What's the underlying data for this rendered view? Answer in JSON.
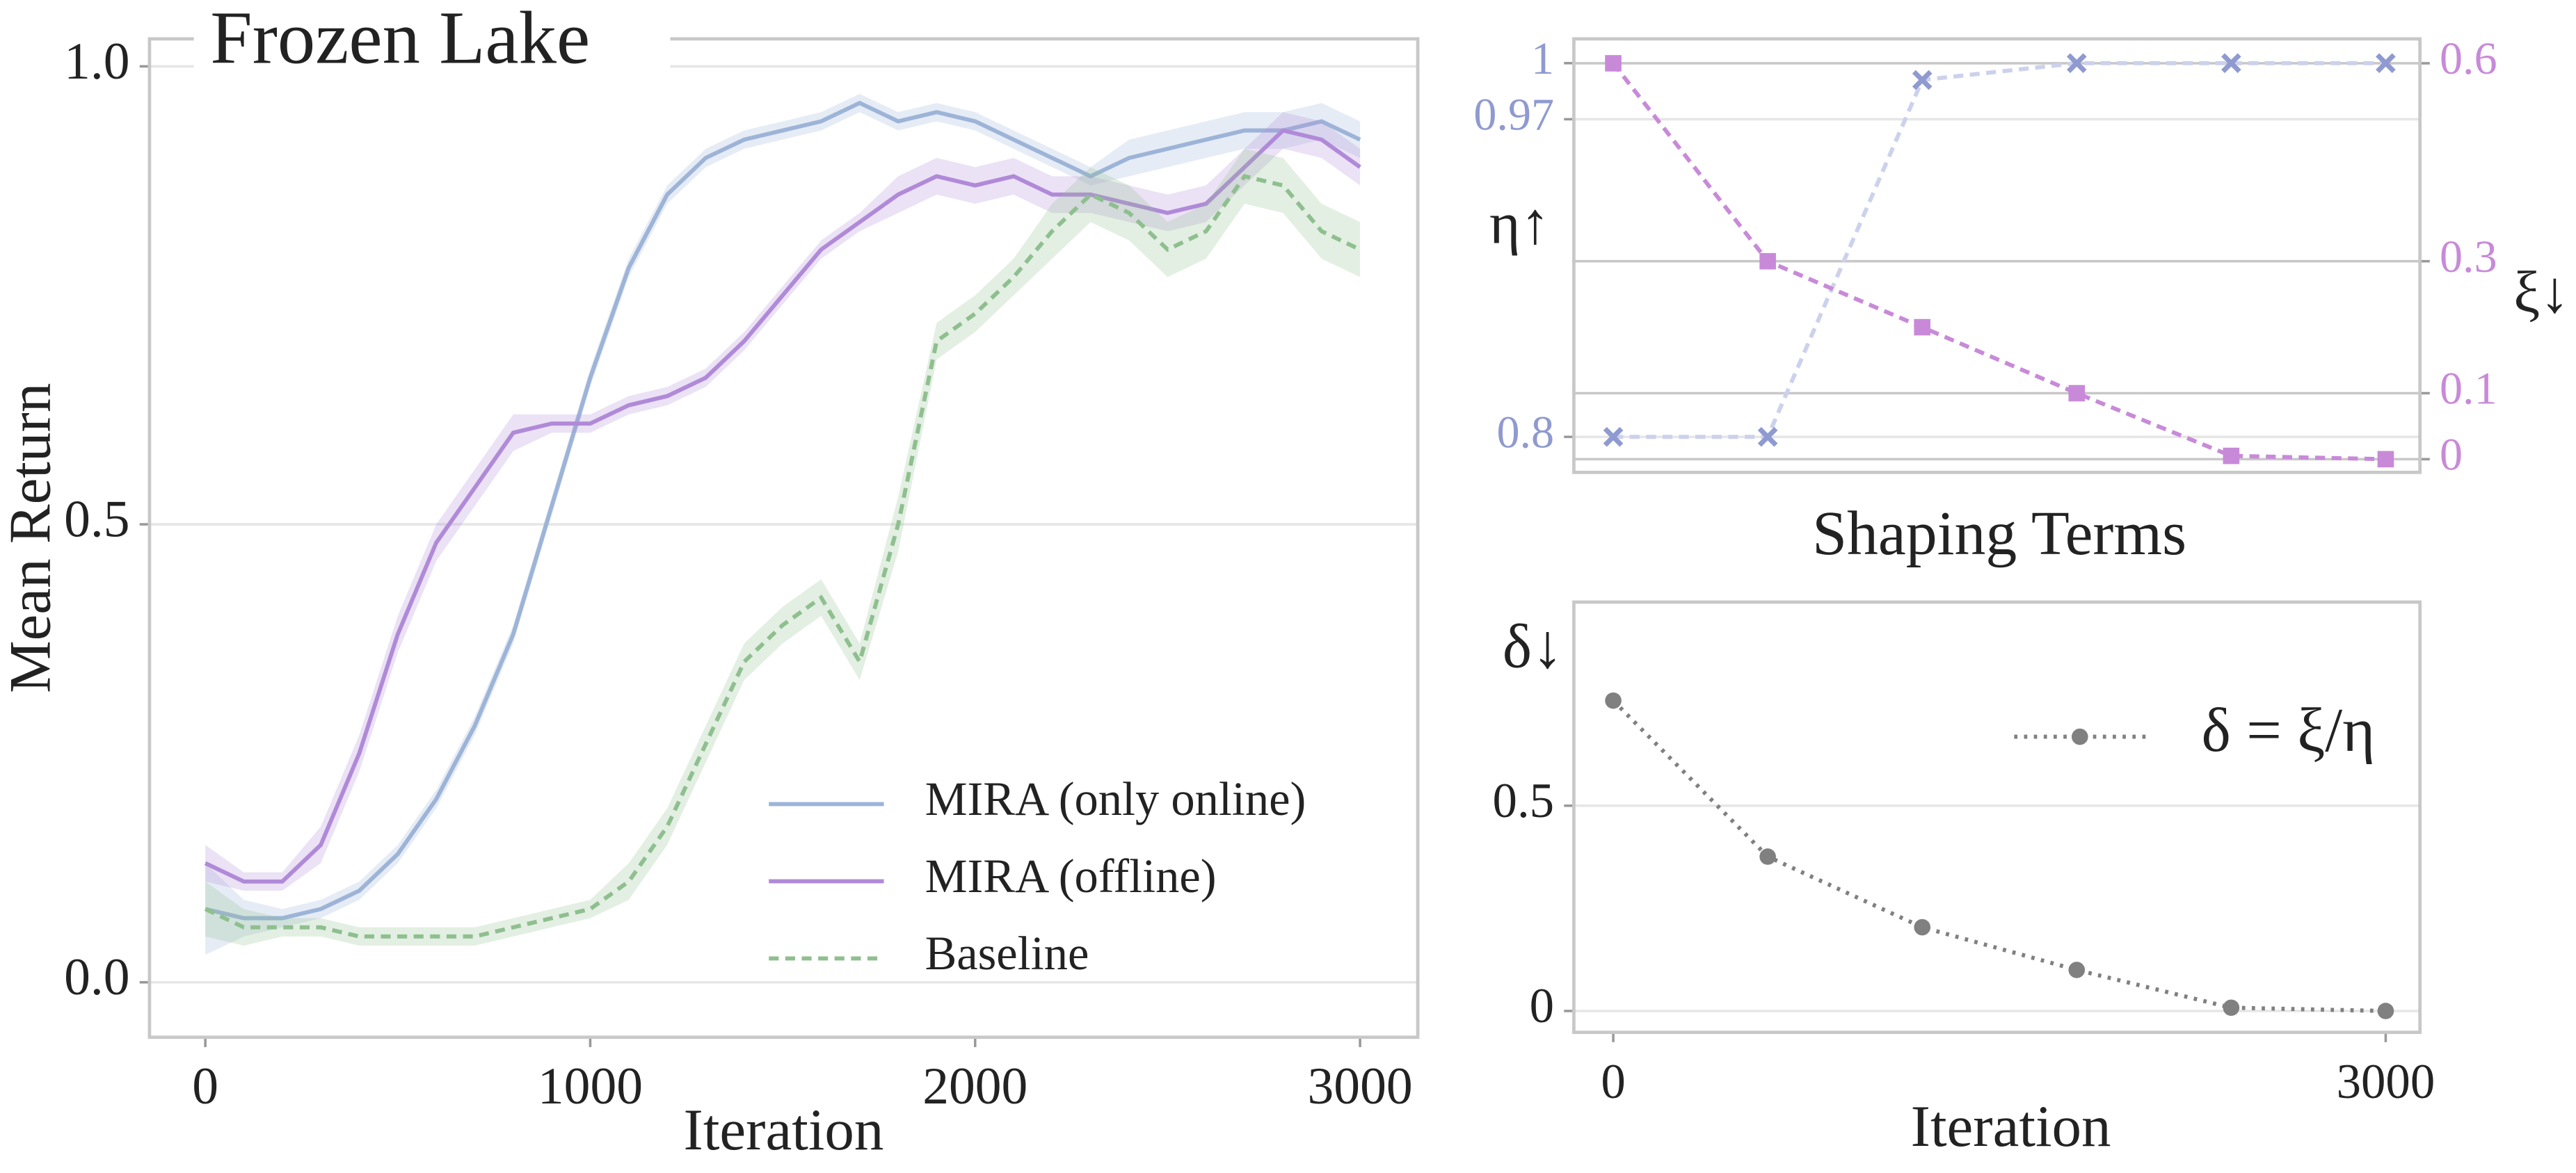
{
  "chart_data": [
    {
      "type": "line",
      "title": "Frozen Lake",
      "xlabel": "Iteration",
      "ylabel": "Mean Return",
      "x": [
        0,
        100,
        200,
        300,
        400,
        500,
        600,
        700,
        800,
        900,
        1000,
        1100,
        1200,
        1300,
        1400,
        1500,
        1600,
        1700,
        1800,
        1900,
        2000,
        2100,
        2200,
        2300,
        2400,
        2500,
        2600,
        2700,
        2800,
        2900,
        3000
      ],
      "xlim": [
        -145,
        3150
      ],
      "xticks": [
        0,
        1000,
        2000,
        3000
      ],
      "ylim": [
        -0.06,
        1.03
      ],
      "yticks": [
        {
          "value": 0,
          "label": "0.0"
        },
        0.5,
        {
          "value": 1,
          "label": "1.0"
        }
      ],
      "grid": true,
      "legend": "lower right",
      "series": [
        {
          "name": "MIRA (only online)",
          "color": "#9db4d8",
          "dash": "solid",
          "values": [
            0.08,
            0.07,
            0.07,
            0.08,
            0.1,
            0.14,
            0.2,
            0.28,
            0.38,
            0.52,
            0.66,
            0.78,
            0.86,
            0.9,
            0.92,
            0.93,
            0.94,
            0.96,
            0.94,
            0.95,
            0.94,
            0.92,
            0.9,
            0.88,
            0.9,
            0.91,
            0.92,
            0.93,
            0.93,
            0.94,
            0.92
          ],
          "error": [
            0.05,
            0.02,
            0.01,
            0.01,
            0.01,
            0.01,
            0.01,
            0.01,
            0.01,
            0.01,
            0.01,
            0.01,
            0.01,
            0.01,
            0.01,
            0.01,
            0.01,
            0.01,
            0.01,
            0.01,
            0.01,
            0.01,
            0.01,
            0.01,
            0.02,
            0.02,
            0.02,
            0.02,
            0.02,
            0.02,
            0.02
          ]
        },
        {
          "name": "MIRA (offline)",
          "color": "#b08ad8",
          "dash": "solid",
          "values": [
            0.13,
            0.11,
            0.11,
            0.15,
            0.25,
            0.38,
            0.48,
            0.54,
            0.6,
            0.61,
            0.61,
            0.63,
            0.64,
            0.66,
            0.7,
            0.75,
            0.8,
            0.83,
            0.86,
            0.88,
            0.87,
            0.88,
            0.86,
            0.86,
            0.85,
            0.84,
            0.85,
            0.89,
            0.93,
            0.92,
            0.89
          ],
          "error": [
            0.02,
            0.01,
            0.01,
            0.02,
            0.02,
            0.02,
            0.02,
            0.02,
            0.02,
            0.01,
            0.01,
            0.01,
            0.01,
            0.01,
            0.01,
            0.01,
            0.01,
            0.01,
            0.02,
            0.02,
            0.02,
            0.02,
            0.02,
            0.02,
            0.02,
            0.02,
            0.02,
            0.02,
            0.02,
            0.02,
            0.02
          ]
        },
        {
          "name": "Baseline",
          "color": "#8fbf8f",
          "dash": "dashed",
          "values": [
            0.08,
            0.06,
            0.06,
            0.06,
            0.05,
            0.05,
            0.05,
            0.05,
            0.06,
            0.07,
            0.08,
            0.11,
            0.17,
            0.26,
            0.35,
            0.39,
            0.42,
            0.35,
            0.5,
            0.7,
            0.73,
            0.77,
            0.82,
            0.86,
            0.84,
            0.8,
            0.82,
            0.88,
            0.87,
            0.82,
            0.8
          ],
          "error": [
            0.03,
            0.02,
            0.01,
            0.01,
            0.01,
            0.01,
            0.01,
            0.01,
            0.01,
            0.01,
            0.01,
            0.02,
            0.02,
            0.02,
            0.02,
            0.02,
            0.02,
            0.02,
            0.03,
            0.02,
            0.02,
            0.02,
            0.03,
            0.03,
            0.03,
            0.03,
            0.03,
            0.03,
            0.03,
            0.03,
            0.03
          ]
        }
      ]
    },
    {
      "type": "line",
      "xlabel": "Shaping Terms",
      "ylabel": "η↑",
      "y2label": "ξ↓",
      "x": [
        0,
        600,
        1200,
        1800,
        2400,
        3000
      ],
      "xlim": [
        -153,
        3133
      ],
      "ylim": [
        0.781,
        1.013
      ],
      "yticks": [
        0.8,
        0.97,
        1
      ],
      "y2lim": [
        -0.02,
        0.637
      ],
      "y2ticks": [
        0,
        0.1,
        0.3,
        0.6
      ],
      "grid": true,
      "series": [
        {
          "color": "#8f9ad0",
          "line_color": "#ccd1ec",
          "marker": "x",
          "dash": "dashed",
          "values": [
            0.8,
            0.8,
            0.991,
            1,
            1,
            1
          ]
        },
        {
          "color": "#c88ad8",
          "marker": "square",
          "dash": "dashed",
          "axis": "y2",
          "values": [
            0.6,
            0.3,
            0.2,
            0.1,
            0.005,
            0
          ]
        }
      ]
    },
    {
      "type": "line",
      "xlabel": "Iteration",
      "ylabel": "δ↓",
      "x": [
        0,
        600,
        1200,
        1800,
        2400,
        3000
      ],
      "xlim": [
        -153,
        3133
      ],
      "xticks": [
        0,
        3000
      ],
      "ylim": [
        -0.052,
        0.996
      ],
      "yticks": [
        0,
        0.5
      ],
      "grid": true,
      "legend": "upper right",
      "series": [
        {
          "name": "δ = ξ/η",
          "color": "#808080",
          "marker": "circle",
          "dash": "dotted",
          "values": [
            0.756,
            0.376,
            0.204,
            0.1,
            0.008,
            0
          ]
        }
      ]
    }
  ]
}
